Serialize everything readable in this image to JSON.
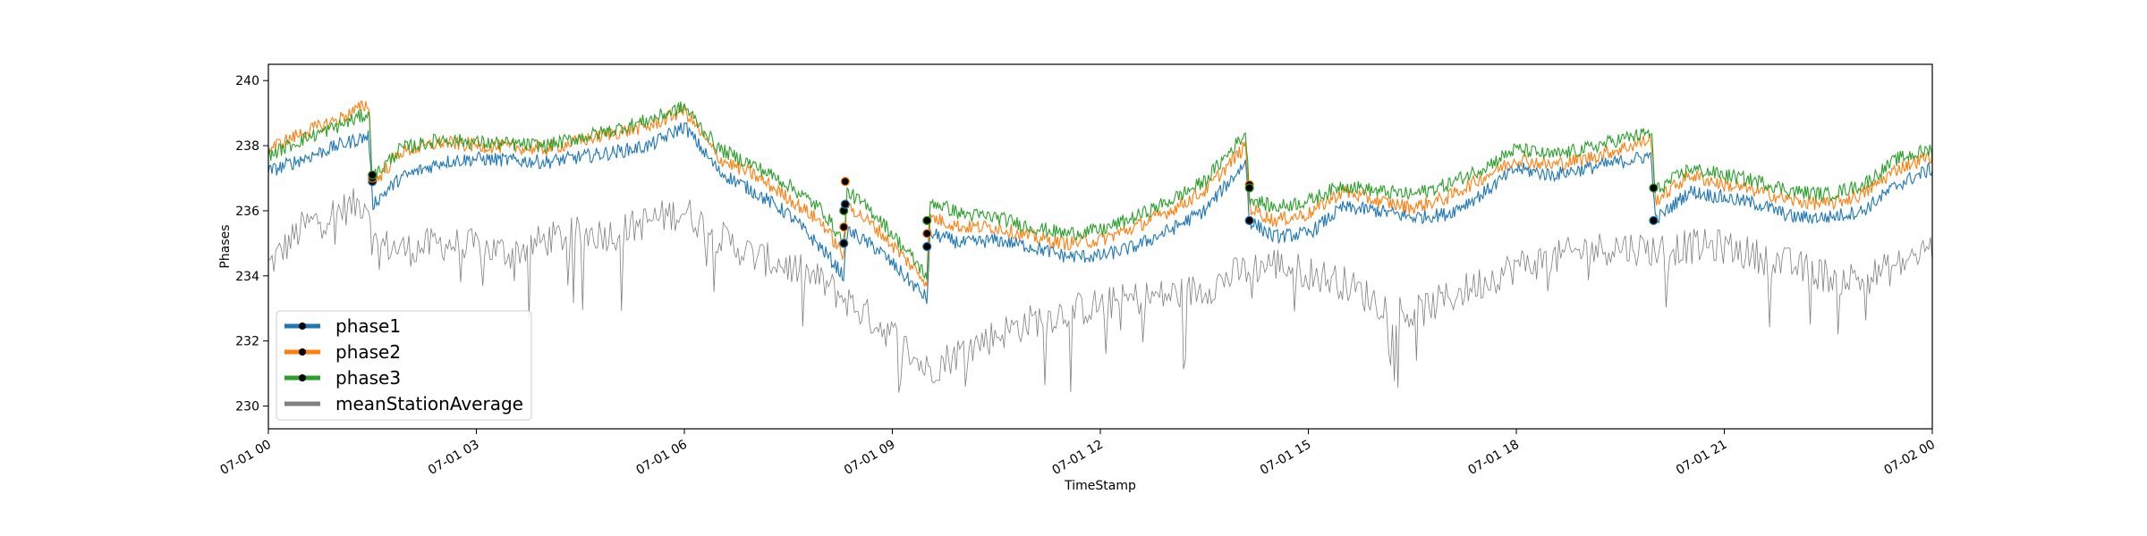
{
  "chart_data": {
    "type": "line",
    "title": "",
    "xlabel": "TimeStamp",
    "ylabel": "Phases",
    "xlim": [
      "07-01 00",
      "07-02 00"
    ],
    "ylim": [
      229.3,
      240.5
    ],
    "x_tick_labels": [
      "07-01 00",
      "07-01 03",
      "07-01 06",
      "07-01 09",
      "07-01 12",
      "07-01 15",
      "07-01 18",
      "07-01 21",
      "07-02 00"
    ],
    "y_ticks": [
      230,
      232,
      234,
      236,
      238,
      240
    ],
    "legend": "lower-left",
    "grid": false,
    "x_unit": "hours since 07-01 00",
    "series": [
      {
        "name": "phase1",
        "color": "#1f77b4",
        "x": [
          0,
          0.5,
          1,
          1.45,
          1.5,
          1.9,
          2.5,
          3,
          4,
          5,
          5.5,
          6,
          6.5,
          7,
          7.5,
          8,
          8.3,
          8.35,
          8.8,
          9.5,
          9.55,
          10,
          10.5,
          11,
          11.5,
          12,
          12.5,
          13,
          13.5,
          14.1,
          14.15,
          14.5,
          15,
          15.5,
          16,
          16.5,
          17,
          17.5,
          18,
          18.5,
          19,
          19.5,
          19.95,
          20.0,
          20.5,
          21,
          21.5,
          22,
          22.5,
          23,
          23.5,
          24
        ],
        "y": [
          237.2,
          237.6,
          238.0,
          238.3,
          236.2,
          237.0,
          237.5,
          237.6,
          237.5,
          237.8,
          238.0,
          238.6,
          237.2,
          236.6,
          235.9,
          234.8,
          234.0,
          235.4,
          234.8,
          233.3,
          235.3,
          235.0,
          235.1,
          234.9,
          234.6,
          234.6,
          234.9,
          235.4,
          236.0,
          237.5,
          235.7,
          235.2,
          235.3,
          236.1,
          236.0,
          235.8,
          235.9,
          236.5,
          237.3,
          237.1,
          237.3,
          237.5,
          237.7,
          235.7,
          236.6,
          236.4,
          236.2,
          235.8,
          235.8,
          236.0,
          236.8,
          237.3
        ]
      },
      {
        "name": "phase2",
        "color": "#ff7f0e",
        "x": [
          0,
          0.5,
          1,
          1.45,
          1.5,
          1.9,
          2.5,
          3,
          4,
          5,
          5.5,
          6,
          6.5,
          7,
          7.5,
          8,
          8.3,
          8.35,
          8.8,
          9.5,
          9.55,
          10,
          10.5,
          11,
          11.5,
          12,
          12.5,
          13,
          13.5,
          14.1,
          14.15,
          14.5,
          15,
          15.5,
          16,
          16.5,
          17,
          17.5,
          18,
          18.5,
          19,
          19.5,
          19.95,
          20.0,
          20.5,
          21,
          21.5,
          22,
          22.5,
          23,
          23.5,
          24
        ],
        "y": [
          237.9,
          238.4,
          238.8,
          239.3,
          236.8,
          237.8,
          238.1,
          238.0,
          237.9,
          238.4,
          238.6,
          239.1,
          237.6,
          237.1,
          236.4,
          235.6,
          234.6,
          236.2,
          235.4,
          233.8,
          235.8,
          235.5,
          235.5,
          235.2,
          235.0,
          235.1,
          235.5,
          236.0,
          236.6,
          238.0,
          236.1,
          235.7,
          235.9,
          236.6,
          236.3,
          236.1,
          236.4,
          237.0,
          237.6,
          237.4,
          237.6,
          237.9,
          238.2,
          236.3,
          237.1,
          236.8,
          236.6,
          236.3,
          236.2,
          236.5,
          237.3,
          237.7
        ]
      },
      {
        "name": "phase3",
        "color": "#2ca02c",
        "x": [
          0,
          0.5,
          1,
          1.45,
          1.5,
          1.9,
          2.5,
          3,
          4,
          5,
          5.5,
          6,
          6.5,
          7,
          7.5,
          8,
          8.3,
          8.35,
          8.8,
          9.5,
          9.55,
          10,
          10.5,
          11,
          11.5,
          12,
          12.5,
          13,
          13.5,
          14.1,
          14.15,
          14.5,
          15,
          15.5,
          16,
          16.5,
          17,
          17.5,
          18,
          18.5,
          19,
          19.5,
          19.95,
          20.0,
          20.5,
          21,
          21.5,
          22,
          22.5,
          23,
          23.5,
          24
        ],
        "y": [
          237.7,
          238.2,
          238.6,
          239.0,
          237.0,
          237.9,
          238.2,
          238.1,
          238.0,
          238.5,
          238.8,
          239.2,
          237.9,
          237.4,
          236.8,
          236.0,
          235.0,
          236.6,
          235.8,
          234.0,
          236.3,
          235.9,
          235.8,
          235.5,
          235.3,
          235.4,
          235.8,
          236.3,
          236.9,
          238.4,
          236.4,
          236.1,
          236.3,
          236.8,
          236.6,
          236.5,
          236.8,
          237.3,
          237.9,
          237.7,
          237.9,
          238.2,
          238.4,
          236.6,
          237.3,
          237.1,
          236.9,
          236.6,
          236.5,
          236.8,
          237.6,
          237.9
        ]
      },
      {
        "name": "meanStationAverage",
        "color": "#808080",
        "x": [
          0,
          0.5,
          1,
          1.45,
          1.5,
          2,
          2.5,
          3,
          3.5,
          4,
          4.5,
          5,
          5.5,
          6,
          6.5,
          7,
          7.5,
          8,
          8.5,
          9,
          9.5,
          10,
          10.5,
          11,
          11.5,
          12,
          12.5,
          13,
          13.5,
          14,
          14.5,
          15,
          15.5,
          16,
          16.5,
          17,
          17.5,
          18,
          18.5,
          19,
          19.5,
          20,
          20.5,
          21,
          21.5,
          22,
          22.5,
          23,
          23.5,
          24
        ],
        "y": [
          234.3,
          235.5,
          236.0,
          236.3,
          235.0,
          234.8,
          235.0,
          234.9,
          234.7,
          235.1,
          235.3,
          235.3,
          235.7,
          236.0,
          235.2,
          234.6,
          234.3,
          233.8,
          233.0,
          232.2,
          231.1,
          231.7,
          232.2,
          232.6,
          232.9,
          233.1,
          233.3,
          233.4,
          233.6,
          234.1,
          234.4,
          234.1,
          233.8,
          233.2,
          232.8,
          233.3,
          233.8,
          234.3,
          234.5,
          234.8,
          234.9,
          234.8,
          234.9,
          234.9,
          234.6,
          234.3,
          234.0,
          233.9,
          234.3,
          234.9
        ]
      }
    ],
    "markers": [
      {
        "series": "phase1",
        "x": 1.5,
        "y": 236.9
      },
      {
        "series": "phase2",
        "x": 1.5,
        "y": 237.0
      },
      {
        "series": "phase3",
        "x": 1.5,
        "y": 237.1
      },
      {
        "series": "phase1",
        "x": 8.3,
        "y": 235.0
      },
      {
        "series": "phase2",
        "x": 8.3,
        "y": 235.5
      },
      {
        "series": "phase3",
        "x": 8.3,
        "y": 236.0
      },
      {
        "series": "phase1",
        "x": 8.32,
        "y": 236.2
      },
      {
        "series": "phase2",
        "x": 8.32,
        "y": 236.9
      },
      {
        "series": "phase1",
        "x": 9.5,
        "y": 234.9
      },
      {
        "series": "phase2",
        "x": 9.5,
        "y": 235.3
      },
      {
        "series": "phase3",
        "x": 9.5,
        "y": 235.7
      },
      {
        "series": "phase1",
        "x": 14.15,
        "y": 235.7
      },
      {
        "series": "phase2",
        "x": 14.15,
        "y": 236.8
      },
      {
        "series": "phase3",
        "x": 14.15,
        "y": 236.7
      },
      {
        "series": "phase1",
        "x": 19.98,
        "y": 235.7
      },
      {
        "series": "phase3",
        "x": 19.98,
        "y": 236.7
      }
    ]
  }
}
